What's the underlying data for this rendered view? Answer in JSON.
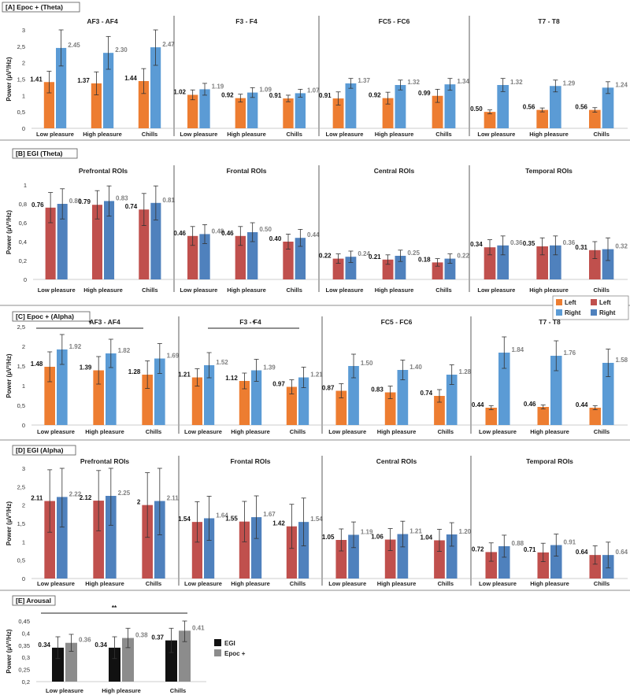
{
  "chart_data": [
    {
      "id": "A",
      "type": "bar",
      "panel_label": "[A] Epoc + (Theta)",
      "ylabel": "Power (µV²/Hz)",
      "ylim": [
        0,
        3
      ],
      "yticks": [
        "0",
        "0,5",
        "1",
        "1,5",
        "2",
        "2,5",
        "3"
      ],
      "tick_step": 0.5,
      "categories": [
        "Low pleasure",
        "High pleasure",
        "Chills"
      ],
      "series_names": [
        "Left",
        "Right"
      ],
      "colors": [
        "#ED7D31",
        "#5B9BD5"
      ],
      "subplots": [
        {
          "title": "AF3 - AF4",
          "left": [
            1.41,
            1.37,
            1.44
          ],
          "right": [
            2.45,
            2.3,
            2.47
          ],
          "left_labels": [
            "1.41",
            "1.37",
            "1.44"
          ],
          "right_labels": [
            "2.45",
            "2.30",
            "2.47"
          ],
          "err_left": [
            0.33,
            0.35,
            0.38
          ],
          "err_right": [
            0.55,
            0.5,
            0.55
          ]
        },
        {
          "title": "F3 - F4",
          "left": [
            1.02,
            0.92,
            0.91
          ],
          "right": [
            1.19,
            1.09,
            1.07
          ],
          "left_labels": [
            "1.02",
            "0.92",
            "0.91"
          ],
          "right_labels": [
            "1.19",
            "1.09",
            "1.07"
          ],
          "err_left": [
            0.15,
            0.12,
            0.1
          ],
          "err_right": [
            0.18,
            0.15,
            0.12
          ]
        },
        {
          "title": "FC5 - FC6",
          "left": [
            0.91,
            0.92,
            0.99
          ],
          "right": [
            1.37,
            1.32,
            1.34
          ],
          "left_labels": [
            "0.91",
            "0.92",
            "0.99"
          ],
          "right_labels": [
            "1.37",
            "1.32",
            "1.34"
          ],
          "err_left": [
            0.2,
            0.18,
            0.2
          ],
          "err_right": [
            0.15,
            0.15,
            0.18
          ]
        },
        {
          "title": "T7 - T8",
          "left": [
            0.5,
            0.56,
            0.56
          ],
          "right": [
            1.32,
            1.29,
            1.24
          ],
          "left_labels": [
            "0.50",
            "0.56",
            "0.56"
          ],
          "right_labels": [
            "1.32",
            "1.29",
            "1.24"
          ],
          "err_left": [
            0.06,
            0.06,
            0.07
          ],
          "err_right": [
            0.2,
            0.18,
            0.18
          ]
        }
      ]
    },
    {
      "id": "B",
      "type": "bar",
      "panel_label": "[B] EGI (Theta)",
      "ylabel": "Power (µV²/Hz)",
      "ylim": [
        0,
        1
      ],
      "yticks": [
        "0",
        "0,2",
        "0,4",
        "0,6",
        "0,8",
        "1"
      ],
      "tick_step": 0.2,
      "categories": [
        "Low pleasure",
        "High pleasure",
        "Chills"
      ],
      "series_names": [
        "Left",
        "Right"
      ],
      "colors": [
        "#C0504D",
        "#4F81BD"
      ],
      "subplots": [
        {
          "title": "Prefrontal ROIs",
          "left": [
            0.76,
            0.79,
            0.74
          ],
          "right": [
            0.8,
            0.83,
            0.81
          ],
          "left_labels": [
            "0.76",
            "0.79",
            "0.74"
          ],
          "right_labels": [
            "0.80",
            "0.83",
            "0.81"
          ],
          "err_left": [
            0.16,
            0.15,
            0.17
          ],
          "err_right": [
            0.16,
            0.16,
            0.18
          ]
        },
        {
          "title": "Frontal ROIs",
          "left": [
            0.46,
            0.46,
            0.4
          ],
          "right": [
            0.48,
            0.5,
            0.44
          ],
          "left_labels": [
            "0.46",
            "0.46",
            "0.40"
          ],
          "right_labels": [
            "0.48",
            "0.50",
            "0.44"
          ],
          "err_left": [
            0.1,
            0.1,
            0.08
          ],
          "err_right": [
            0.1,
            0.1,
            0.09
          ]
        },
        {
          "title": "Central ROIs",
          "left": [
            0.22,
            0.21,
            0.18
          ],
          "right": [
            0.24,
            0.25,
            0.22
          ],
          "left_labels": [
            "0.22",
            "0.21",
            "0.18"
          ],
          "right_labels": [
            "0.24",
            "0.25",
            "0.22"
          ],
          "err_left": [
            0.05,
            0.05,
            0.04
          ],
          "err_right": [
            0.06,
            0.06,
            0.05
          ]
        },
        {
          "title": "Temporal ROIs",
          "left": [
            0.34,
            0.35,
            0.31
          ],
          "right": [
            0.36,
            0.36,
            0.32
          ],
          "left_labels": [
            "0.34",
            "0.35",
            "0.31"
          ],
          "right_labels": [
            "0.36",
            "0.36",
            "0.32"
          ],
          "err_left": [
            0.08,
            0.09,
            0.09
          ],
          "err_right": [
            0.1,
            0.1,
            0.12
          ]
        }
      ]
    },
    {
      "id": "C",
      "type": "bar",
      "panel_label": "[C] Epoc + (Alpha)",
      "ylabel": "Power (µV²/Hz)",
      "ylim": [
        0,
        2.5
      ],
      "yticks": [
        "0",
        "0,5",
        "1",
        "1,5",
        "2",
        "2,5"
      ],
      "tick_step": 0.5,
      "categories": [
        "Low pleasure",
        "High pleasure",
        "Chills"
      ],
      "series_names": [
        "Left",
        "Right"
      ],
      "colors": [
        "#ED7D31",
        "#5B9BD5"
      ],
      "significance": [
        {
          "subplot": 0,
          "label": "*"
        },
        {
          "subplot": 1,
          "label": "*"
        }
      ],
      "subplots": [
        {
          "title": "AF3 - AF4",
          "left": [
            1.48,
            1.39,
            1.28
          ],
          "right": [
            1.92,
            1.82,
            1.69
          ],
          "left_labels": [
            "1.48",
            "1.39",
            "1.28"
          ],
          "right_labels": [
            "1.92",
            "1.82",
            "1.69"
          ],
          "err_left": [
            0.38,
            0.35,
            0.35
          ],
          "err_right": [
            0.38,
            0.36,
            0.38
          ]
        },
        {
          "title": "F3 - F4",
          "left": [
            1.21,
            1.12,
            0.97
          ],
          "right": [
            1.52,
            1.39,
            1.21
          ],
          "left_labels": [
            "1.21",
            "1.12",
            "0.97"
          ],
          "right_labels": [
            "1.52",
            "1.39",
            "1.21"
          ],
          "err_left": [
            0.22,
            0.2,
            0.18
          ],
          "err_right": [
            0.32,
            0.28,
            0.26
          ]
        },
        {
          "title": "FC5 - FC6",
          "left": [
            0.87,
            0.83,
            0.74
          ],
          "right": [
            1.5,
            1.4,
            1.28
          ],
          "left_labels": [
            "0.87",
            "0.83",
            "0.74"
          ],
          "right_labels": [
            "1.50",
            "1.40",
            "1.28"
          ],
          "err_left": [
            0.18,
            0.16,
            0.16
          ],
          "err_right": [
            0.3,
            0.25,
            0.25
          ]
        },
        {
          "title": "T7 - T8",
          "left": [
            0.44,
            0.46,
            0.44
          ],
          "right": [
            1.84,
            1.76,
            1.58
          ],
          "left_labels": [
            "0.44",
            "0.46",
            "0.44"
          ],
          "right_labels": [
            "1.84",
            "1.76",
            "1.58"
          ],
          "err_left": [
            0.05,
            0.05,
            0.05
          ],
          "err_right": [
            0.4,
            0.38,
            0.35
          ]
        }
      ]
    },
    {
      "id": "D",
      "type": "bar",
      "panel_label": "[D] EGI (Alpha)",
      "ylabel": "Power (µV²/Hz)",
      "ylim": [
        0,
        3
      ],
      "yticks": [
        "0",
        "0,5",
        "1",
        "1,5",
        "2",
        "2,5",
        "3"
      ],
      "tick_step": 0.5,
      "categories": [
        "Low pleasure",
        "High pleasure",
        "Chills"
      ],
      "series_names": [
        "Left",
        "Right"
      ],
      "colors": [
        "#C0504D",
        "#4F81BD"
      ],
      "subplots": [
        {
          "title": "Prefrontal ROIs",
          "left": [
            2.11,
            2.12,
            2.0
          ],
          "right": [
            2.22,
            2.25,
            2.11
          ],
          "left_labels": [
            "2.11",
            "2.12",
            "2"
          ],
          "right_labels": [
            "2.22",
            "2.25",
            "2.11"
          ],
          "err_left": [
            0.85,
            0.82,
            0.88
          ],
          "err_right": [
            0.82,
            0.8,
            0.92
          ]
        },
        {
          "title": "Frontal ROIs",
          "left": [
            1.54,
            1.55,
            1.42
          ],
          "right": [
            1.64,
            1.67,
            1.54
          ],
          "left_labels": [
            "1.54",
            "1.55",
            "1.42"
          ],
          "right_labels": [
            "1.64",
            "1.67",
            "1.54"
          ],
          "err_left": [
            0.55,
            0.55,
            0.6
          ],
          "err_right": [
            0.6,
            0.58,
            0.65
          ]
        },
        {
          "title": "Central ROIs",
          "left": [
            1.05,
            1.06,
            1.04
          ],
          "right": [
            1.19,
            1.21,
            1.2
          ],
          "left_labels": [
            "1.05",
            "1.06",
            "1.04"
          ],
          "right_labels": [
            "1.19",
            "1.21",
            "1.20"
          ],
          "err_left": [
            0.3,
            0.3,
            0.3
          ],
          "err_right": [
            0.35,
            0.35,
            0.32
          ]
        },
        {
          "title": "Temporal ROIs",
          "left": [
            0.72,
            0.71,
            0.64
          ],
          "right": [
            0.88,
            0.91,
            0.64
          ],
          "left_labels": [
            "0.72",
            "0.71",
            "0.64"
          ],
          "right_labels": [
            "0.88",
            "0.91",
            "0.64"
          ],
          "err_left": [
            0.25,
            0.25,
            0.25
          ],
          "err_right": [
            0.3,
            0.3,
            0.35
          ]
        }
      ]
    },
    {
      "id": "E",
      "type": "bar",
      "panel_label": "[E] Arousal",
      "ylabel": "Power (µV²/Hz)",
      "ylim": [
        0.2,
        0.45
      ],
      "yticks": [
        "0,2",
        "0,25",
        "0,3",
        "0,35",
        "0,4",
        "0,45"
      ],
      "tick_step": 0.05,
      "categories": [
        "Low pleasure",
        "High pleasure",
        "Chills"
      ],
      "series_names": [
        "EGI",
        "Epoc +"
      ],
      "colors": [
        "#111111",
        "#8C8C8C"
      ],
      "significance": [
        {
          "subplot": 0,
          "label": "**"
        }
      ],
      "subplots": [
        {
          "title": "",
          "left": [
            0.34,
            0.34,
            0.37
          ],
          "right": [
            0.36,
            0.38,
            0.41
          ],
          "left_labels": [
            "0.34",
            "0.34",
            "0.37"
          ],
          "right_labels": [
            "0.36",
            "0.38",
            "0.41"
          ],
          "err_left": [
            0.045,
            0.045,
            0.05
          ],
          "err_right": [
            0.035,
            0.04,
            0.045
          ]
        }
      ]
    }
  ],
  "legend_theta_alpha": {
    "epoc": {
      "left": "Left",
      "right": "Right",
      "left_color": "#ED7D31",
      "right_color": "#5B9BD5"
    },
    "egi": {
      "left": "Left",
      "right": "Right",
      "left_color": "#C0504D",
      "right_color": "#4F81BD"
    }
  },
  "legend_arousal": {
    "egi": "EGI",
    "epoc": "Epoc +"
  },
  "label_colors": {
    "left": "#111111",
    "right": "#7F7F7F"
  }
}
